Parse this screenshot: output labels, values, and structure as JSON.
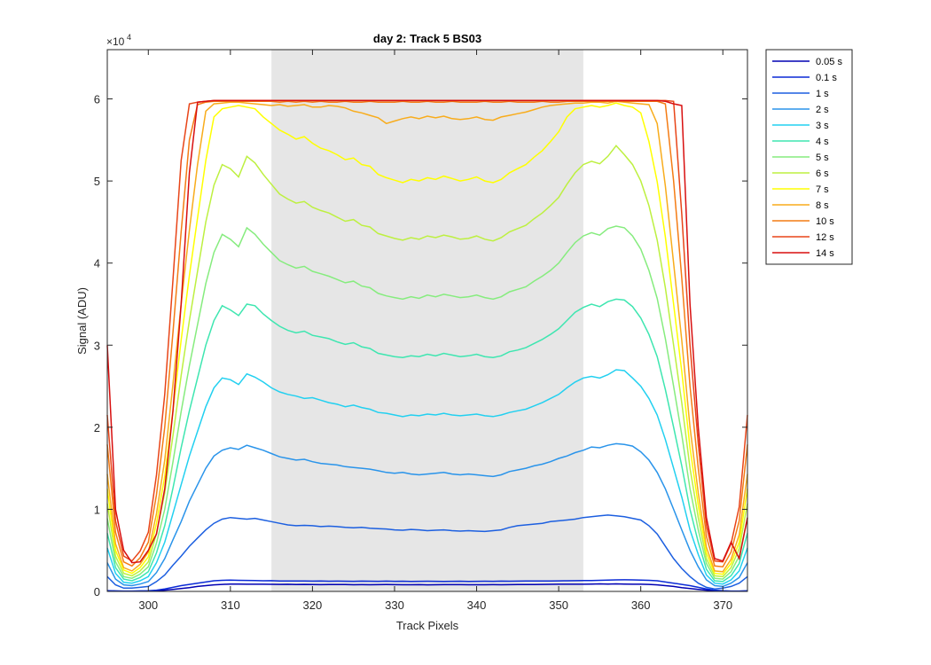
{
  "chart_data": {
    "type": "line",
    "title": "day 2: Track 5  BS03",
    "xlabel": "Track Pixels",
    "ylabel": "Signal (ADU)",
    "y_exponent_base": "×10",
    "y_exponent_power": "4",
    "xlim": [
      295,
      373
    ],
    "ylim": [
      0,
      66000
    ],
    "x_ticks": [
      300,
      310,
      320,
      330,
      340,
      350,
      360,
      370
    ],
    "y_ticks": [
      0,
      10000,
      20000,
      30000,
      40000,
      50000,
      60000
    ],
    "y_tick_labels": [
      "0",
      "1",
      "2",
      "3",
      "4",
      "5",
      "6"
    ],
    "grid": false,
    "legend_position": "outside-top-right",
    "shaded_region": {
      "x_start": 315,
      "x_end": 353,
      "color": "#e6e6e6"
    },
    "x": [
      295,
      296,
      297,
      298,
      299,
      300,
      301,
      302,
      303,
      304,
      305,
      306,
      307,
      308,
      309,
      310,
      311,
      312,
      313,
      314,
      315,
      316,
      317,
      318,
      319,
      320,
      321,
      322,
      323,
      324,
      325,
      326,
      327,
      328,
      329,
      330,
      331,
      332,
      333,
      334,
      335,
      336,
      337,
      338,
      339,
      340,
      341,
      342,
      343,
      344,
      345,
      346,
      347,
      348,
      349,
      350,
      351,
      352,
      353,
      354,
      355,
      356,
      357,
      358,
      359,
      360,
      361,
      362,
      363,
      364,
      365,
      366,
      367,
      368,
      369,
      370,
      371,
      372,
      373
    ],
    "series": [
      {
        "name": "0.05 s",
        "color": "#0000b3",
        "values": [
          50,
          30,
          20,
          20,
          30,
          40,
          80,
          150,
          250,
          350,
          450,
          600,
          700,
          800,
          850,
          900,
          900,
          880,
          880,
          870,
          860,
          850,
          860,
          840,
          850,
          830,
          820,
          840,
          840,
          830,
          810,
          820,
          810,
          820,
          830,
          820,
          810,
          810,
          820,
          800,
          810,
          820,
          820,
          820,
          810,
          810,
          810,
          820,
          810,
          820,
          830,
          840,
          840,
          850,
          860,
          880,
          870,
          880,
          880,
          900,
          920,
          900,
          920,
          900,
          880,
          880,
          850,
          800,
          700,
          600,
          450,
          350,
          250,
          150,
          80,
          40,
          20,
          20,
          40
        ]
      },
      {
        "name": "0.1 s",
        "color": "#0a2ad6",
        "values": [
          100,
          60,
          40,
          40,
          60,
          80,
          150,
          300,
          500,
          700,
          850,
          1000,
          1150,
          1300,
          1350,
          1380,
          1350,
          1340,
          1320,
          1300,
          1310,
          1280,
          1270,
          1280,
          1260,
          1250,
          1260,
          1240,
          1250,
          1240,
          1230,
          1250,
          1240,
          1230,
          1250,
          1230,
          1240,
          1220,
          1230,
          1240,
          1230,
          1220,
          1230,
          1240,
          1220,
          1230,
          1240,
          1230,
          1250,
          1240,
          1250,
          1260,
          1270,
          1260,
          1280,
          1290,
          1300,
          1310,
          1320,
          1330,
          1350,
          1370,
          1400,
          1420,
          1400,
          1380,
          1350,
          1300,
          1150,
          1000,
          850,
          700,
          500,
          300,
          150,
          80,
          40,
          40,
          80
        ]
      },
      {
        "name": "1 s",
        "color": "#1c5fe0",
        "values": [
          1800,
          800,
          400,
          400,
          500,
          600,
          1200,
          2000,
          3200,
          4300,
          5500,
          6500,
          7500,
          8300,
          8800,
          9000,
          8900,
          8800,
          8900,
          8700,
          8500,
          8300,
          8100,
          8000,
          8050,
          8000,
          7900,
          7950,
          7900,
          7800,
          7750,
          7800,
          7700,
          7650,
          7600,
          7500,
          7450,
          7550,
          7500,
          7400,
          7450,
          7500,
          7400,
          7350,
          7400,
          7350,
          7300,
          7400,
          7500,
          7800,
          8000,
          8100,
          8200,
          8300,
          8500,
          8600,
          8700,
          8800,
          9000,
          9100,
          9200,
          9300,
          9200,
          9100,
          8900,
          8700,
          8000,
          7000,
          5500,
          4000,
          2800,
          1800,
          1000,
          500,
          300,
          400,
          600,
          1000,
          1800
        ]
      },
      {
        "name": "2 s",
        "color": "#2a94ea",
        "values": [
          3500,
          1500,
          800,
          700,
          900,
          1200,
          2300,
          4000,
          6300,
          8500,
          11000,
          13000,
          15000,
          16500,
          17200,
          17500,
          17300,
          17800,
          17500,
          17200,
          16800,
          16400,
          16200,
          16000,
          16100,
          15800,
          15600,
          15500,
          15400,
          15200,
          15100,
          15000,
          14900,
          14700,
          14500,
          14400,
          14500,
          14300,
          14200,
          14300,
          14400,
          14500,
          14300,
          14200,
          14300,
          14200,
          14100,
          14000,
          14200,
          14600,
          14800,
          15000,
          15300,
          15500,
          15800,
          16200,
          16500,
          16900,
          17200,
          17600,
          17500,
          17800,
          18000,
          17900,
          17700,
          17000,
          16000,
          14500,
          12500,
          10000,
          7500,
          5000,
          3000,
          1400,
          700,
          600,
          1000,
          1700,
          3500
        ]
      },
      {
        "name": "3 s",
        "color": "#22d0f0",
        "values": [
          5300,
          2200,
          1100,
          1000,
          1300,
          1800,
          3500,
          6000,
          9500,
          13000,
          16500,
          19500,
          22500,
          24800,
          26000,
          25800,
          25200,
          26500,
          26100,
          25500,
          24800,
          24300,
          24000,
          23800,
          23500,
          23600,
          23300,
          23000,
          22800,
          22500,
          22700,
          22400,
          22200,
          21800,
          21700,
          21500,
          21300,
          21500,
          21400,
          21600,
          21500,
          21700,
          21500,
          21400,
          21500,
          21600,
          21400,
          21300,
          21500,
          21800,
          22000,
          22200,
          22600,
          23000,
          23500,
          24000,
          24800,
          25500,
          26000,
          26200,
          26000,
          26400,
          27000,
          26900,
          26000,
          25000,
          23500,
          21500,
          18500,
          15000,
          11500,
          7500,
          4500,
          2000,
          1000,
          900,
          1400,
          2500,
          5300
        ]
      },
      {
        "name": "4 s",
        "color": "#3ee6b0",
        "values": [
          7100,
          2900,
          1500,
          1300,
          1700,
          2400,
          4700,
          8000,
          12600,
          17500,
          22000,
          26000,
          30000,
          33000,
          34800,
          34300,
          33600,
          35000,
          34800,
          33800,
          33000,
          32300,
          31800,
          31500,
          31700,
          31200,
          31000,
          30800,
          30400,
          30100,
          30300,
          29800,
          29600,
          29000,
          28800,
          28600,
          28500,
          28700,
          28600,
          28900,
          28700,
          29000,
          28800,
          28600,
          28700,
          28900,
          28600,
          28500,
          28700,
          29200,
          29400,
          29700,
          30200,
          30700,
          31300,
          32000,
          33000,
          34000,
          34600,
          35000,
          34700,
          35300,
          35600,
          35500,
          34700,
          33300,
          31300,
          28600,
          24600,
          20000,
          15300,
          10000,
          6000,
          2700,
          1300,
          1200,
          1900,
          3400,
          7100
        ]
      },
      {
        "name": "5 s",
        "color": "#86ec7e",
        "values": [
          8900,
          3600,
          1800,
          1600,
          2100,
          3000,
          5900,
          10000,
          15800,
          21900,
          27500,
          32500,
          37500,
          41300,
          43500,
          42900,
          42000,
          44300,
          43500,
          42300,
          41300,
          40300,
          39800,
          39400,
          39600,
          39000,
          38700,
          38400,
          38000,
          37600,
          37800,
          37200,
          37000,
          36300,
          36000,
          35800,
          35600,
          35900,
          35700,
          36100,
          35900,
          36200,
          36000,
          35800,
          35900,
          36100,
          35800,
          35600,
          35900,
          36500,
          36800,
          37100,
          37800,
          38400,
          39100,
          40000,
          41300,
          42500,
          43300,
          43700,
          43400,
          44200,
          44500,
          44300,
          43300,
          41700,
          39100,
          35700,
          30800,
          25000,
          19100,
          12500,
          7500,
          3400,
          1600,
          1500,
          2400,
          4300,
          8900
        ]
      },
      {
        "name": "6 s",
        "color": "#bdf040",
        "values": [
          10700,
          4300,
          2200,
          1900,
          2500,
          3600,
          7100,
          12000,
          19000,
          26300,
          33000,
          39000,
          45000,
          49500,
          52000,
          51500,
          50500,
          53000,
          52200,
          50800,
          49600,
          48400,
          47800,
          47300,
          47500,
          46800,
          46400,
          46100,
          45600,
          45100,
          45300,
          44600,
          44400,
          43600,
          43300,
          43000,
          42800,
          43100,
          42900,
          43300,
          43100,
          43400,
          43200,
          42900,
          43000,
          43300,
          42900,
          42700,
          43100,
          43800,
          44200,
          44600,
          45400,
          46100,
          47000,
          48000,
          49600,
          51000,
          52000,
          52400,
          52100,
          53000,
          54300,
          53200,
          52000,
          50000,
          47000,
          42800,
          37000,
          30000,
          23000,
          15000,
          9000,
          4000,
          1900,
          1800,
          2900,
          5200,
          10700
        ]
      },
      {
        "name": "7 s",
        "color": "#ffff00",
        "values": [
          12500,
          5000,
          2600,
          2200,
          2900,
          4200,
          8300,
          14000,
          22100,
          30600,
          38500,
          45500,
          52500,
          57800,
          58800,
          59000,
          59200,
          59000,
          58800,
          57800,
          57000,
          56200,
          55700,
          55100,
          55400,
          54600,
          54000,
          53700,
          53200,
          52600,
          52800,
          52000,
          51800,
          50800,
          50400,
          50100,
          49800,
          50200,
          50000,
          50400,
          50200,
          50600,
          50300,
          50000,
          50200,
          50500,
          50000,
          49800,
          50200,
          51000,
          51500,
          52000,
          52900,
          53700,
          54800,
          56000,
          57800,
          58800,
          59000,
          59200,
          59000,
          59200,
          59500,
          59200,
          59000,
          58300,
          54800,
          49900,
          43200,
          35000,
          26800,
          17500,
          10500,
          4700,
          2200,
          2100,
          3400,
          6000,
          12500
        ]
      },
      {
        "name": "8 s",
        "color": "#f8ac1c",
        "values": [
          14300,
          5800,
          2900,
          2500,
          3300,
          4800,
          9500,
          16000,
          25300,
          35000,
          44000,
          52000,
          58500,
          59400,
          59500,
          59600,
          59600,
          59500,
          59400,
          59300,
          59200,
          59300,
          59100,
          59200,
          59300,
          59000,
          59000,
          59200,
          59100,
          58900,
          58500,
          58300,
          58000,
          57700,
          57000,
          57300,
          57600,
          57800,
          57600,
          57900,
          57700,
          57900,
          57600,
          57500,
          57600,
          57800,
          57500,
          57400,
          57800,
          58000,
          58200,
          58400,
          58700,
          59000,
          59200,
          59300,
          59400,
          59500,
          59500,
          59600,
          59600,
          59500,
          59700,
          59600,
          59500,
          59400,
          59300,
          57000,
          49400,
          40000,
          30600,
          20000,
          12000,
          5400,
          2500,
          2400,
          3900,
          6900,
          14300
        ]
      },
      {
        "name": "10 s",
        "color": "#f47c14",
        "values": [
          17900,
          7200,
          3600,
          3100,
          4100,
          6000,
          11800,
          20000,
          31600,
          43800,
          55000,
          59300,
          59600,
          59700,
          59700,
          59700,
          59700,
          59700,
          59700,
          59700,
          59700,
          59600,
          59700,
          59600,
          59700,
          59600,
          59700,
          59600,
          59600,
          59700,
          59600,
          59600,
          59700,
          59600,
          59600,
          59600,
          59700,
          59600,
          59600,
          59700,
          59600,
          59600,
          59700,
          59600,
          59600,
          59600,
          59700,
          59600,
          59600,
          59700,
          59600,
          59600,
          59600,
          59700,
          59600,
          59600,
          59700,
          59700,
          59700,
          59700,
          59700,
          59700,
          59700,
          59700,
          59700,
          59700,
          59700,
          59700,
          59400,
          50000,
          38200,
          25000,
          15000,
          6700,
          3100,
          3000,
          4800,
          8600,
          17900
        ]
      },
      {
        "name": "12 s",
        "color": "#e84518",
        "values": [
          21500,
          8600,
          4300,
          3700,
          4900,
          7200,
          14200,
          24000,
          38000,
          52500,
          59400,
          59600,
          59700,
          59800,
          59800,
          59800,
          59800,
          59800,
          59800,
          59800,
          59800,
          59800,
          59800,
          59800,
          59800,
          59800,
          59800,
          59800,
          59800,
          59800,
          59800,
          59800,
          59800,
          59800,
          59800,
          59800,
          59800,
          59800,
          59800,
          59800,
          59800,
          59800,
          59800,
          59800,
          59800,
          59800,
          59800,
          59800,
          59800,
          59800,
          59800,
          59800,
          59800,
          59800,
          59800,
          59800,
          59800,
          59800,
          59800,
          59800,
          59800,
          59800,
          59800,
          59800,
          59800,
          59800,
          59800,
          59800,
          59800,
          59700,
          46000,
          30000,
          18000,
          8000,
          3700,
          3600,
          5800,
          10300,
          21500
        ]
      },
      {
        "name": "14 s",
        "color": "#d80f0f",
        "values": [
          30000,
          10000,
          5000,
          3500,
          3600,
          5000,
          7000,
          12500,
          22000,
          35000,
          51000,
          59600,
          59700,
          59800,
          59800,
          59800,
          59800,
          59800,
          59800,
          59800,
          59800,
          59800,
          59800,
          59800,
          59800,
          59800,
          59800,
          59800,
          59800,
          59800,
          59800,
          59800,
          59800,
          59800,
          59800,
          59800,
          59800,
          59800,
          59800,
          59800,
          59800,
          59800,
          59800,
          59800,
          59800,
          59800,
          59800,
          59800,
          59800,
          59800,
          59800,
          59800,
          59800,
          59800,
          59800,
          59800,
          59800,
          59800,
          59800,
          59800,
          59800,
          59800,
          59800,
          59800,
          59800,
          59800,
          59800,
          59800,
          59700,
          59400,
          59200,
          35000,
          20000,
          9000,
          4000,
          3700,
          6000,
          4000,
          9000
        ]
      }
    ]
  }
}
